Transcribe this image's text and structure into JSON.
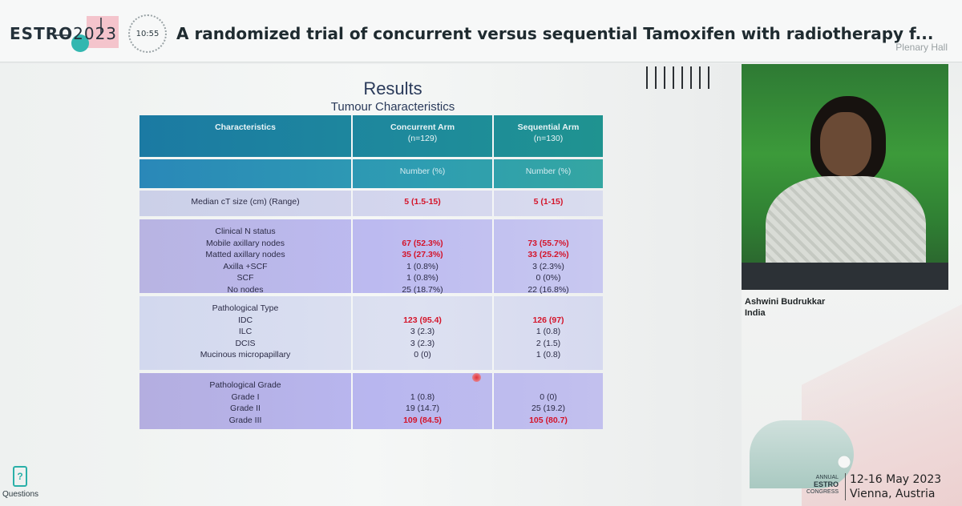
{
  "header": {
    "logo_brand": "ESTRO",
    "logo_year": "2023",
    "clock_time": "10:55",
    "talk_title": "A randomized trial of concurrent versus sequential Tamoxifen with radiotherapy f...",
    "location": "Plenary Hall"
  },
  "slide": {
    "title": "Results",
    "subtitle": "Tumour Characteristics",
    "table": {
      "col1_header": "Characteristics",
      "col2_header_line1": "Concurrent Arm",
      "col2_header_line2": "(n=129)",
      "col3_header_line1": "Sequential Arm",
      "col3_header_line2": "(n=130)",
      "col2_units": "Number (%)",
      "col3_units": "Number (%)",
      "rows": [
        {
          "label": "Median cT size (cm) (Range)",
          "concurrent": "5 (1.5-15)",
          "sequential": "5 (1-15)"
        }
      ],
      "clinical_n": {
        "heading": "Clinical N status",
        "items": [
          {
            "label": "Mobile axillary nodes",
            "concurrent": "67 (52.3%)",
            "sequential": "73 (55.7%)",
            "highlight": true
          },
          {
            "label": "Matted axillary nodes",
            "concurrent": "35 (27.3%)",
            "sequential": "33 (25.2%)",
            "highlight": true
          },
          {
            "label": "Axilla +SCF",
            "concurrent": "1 (0.8%)",
            "sequential": "3 (2.3%)",
            "highlight": false
          },
          {
            "label": "SCF",
            "concurrent": "1 (0.8%)",
            "sequential": "0 (0%)",
            "highlight": false
          },
          {
            "label": "No nodes",
            "concurrent": "25 (18.7%)",
            "sequential": "22 (16.8%)",
            "highlight": false
          }
        ]
      },
      "pathological_type": {
        "heading": "Pathological Type",
        "items": [
          {
            "label": "IDC",
            "concurrent": "123 (95.4)",
            "sequential": "126 (97)",
            "highlight": true
          },
          {
            "label": "ILC",
            "concurrent": "3 (2.3)",
            "sequential": "1 (0.8)",
            "highlight": false
          },
          {
            "label": "DCIS",
            "concurrent": "3 (2.3)",
            "sequential": "2 (1.5)",
            "highlight": false
          },
          {
            "label": "Mucinous micropapillary",
            "concurrent": "0 (0)",
            "sequential": "1 (0.8)",
            "highlight": false
          }
        ]
      },
      "pathological_grade": {
        "heading": "Pathological Grade",
        "items": [
          {
            "label": "Grade I",
            "concurrent": "1 (0.8)",
            "sequential": "0 (0)",
            "highlight": false
          },
          {
            "label": "Grade II",
            "concurrent": "19 (14.7)",
            "sequential": "25 (19.2)",
            "highlight": false
          },
          {
            "label": "Grade III",
            "concurrent": "109 (84.5)",
            "sequential": "105 (80.7)",
            "highlight": true
          }
        ]
      }
    }
  },
  "speaker": {
    "name": "Ashwini Budrukkar",
    "country": "India"
  },
  "congress": {
    "line1": "ANNUAL",
    "line2": "ESTRO",
    "line3": "CONGRESS",
    "dates": "12-16 May 2023",
    "city": "Vienna, Austria"
  },
  "questions": {
    "label": "Questions"
  },
  "colors": {
    "highlight_red": "#d4142a",
    "header_teal": "#1e8a9c",
    "accent_teal": "#2ab0a8"
  }
}
